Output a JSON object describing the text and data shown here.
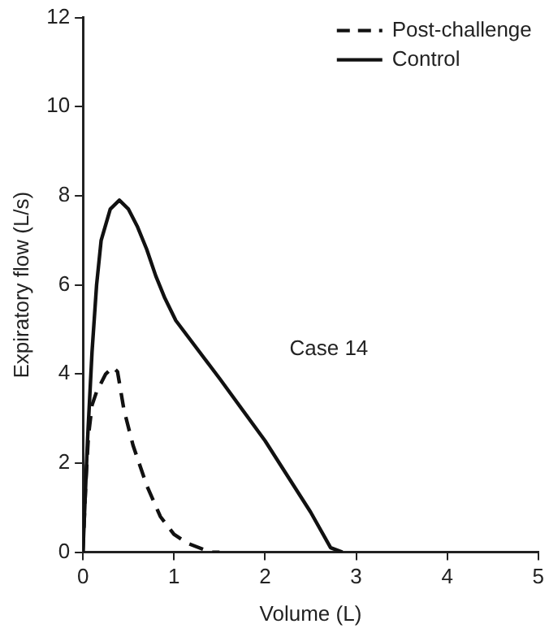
{
  "chart_data": {
    "type": "line",
    "xlabel": "Volume (L)",
    "ylabel": "Expiratory flow (L/s)",
    "annotations": [
      "Case 14"
    ],
    "xlim": [
      0,
      5
    ],
    "xticks": [
      0,
      1,
      2,
      3,
      4,
      5
    ],
    "ylim": [
      0,
      12
    ],
    "yticks": [
      0,
      2,
      4,
      6,
      8,
      10,
      12
    ],
    "grid": false,
    "legend": "top right",
    "marker": "none",
    "series": [
      {
        "name": "Post-challenge",
        "color": "#111111",
        "line_style": "dashed",
        "x": [
          0,
          0.03,
          0.06,
          0.1,
          0.15,
          0.25,
          0.33,
          0.38,
          0.45,
          0.55,
          0.7,
          0.85,
          1.0,
          1.15,
          1.4,
          1.5
        ],
        "values": [
          0,
          1.5,
          2.6,
          3.3,
          3.6,
          4.0,
          4.15,
          4.05,
          3.2,
          2.4,
          1.5,
          0.8,
          0.4,
          0.2,
          0,
          0
        ]
      },
      {
        "name": "Control",
        "color": "#111111",
        "line_style": "solid",
        "x": [
          0,
          0.05,
          0.1,
          0.15,
          0.2,
          0.3,
          0.4,
          0.5,
          0.6,
          0.7,
          0.8,
          0.9,
          1.02,
          1.5,
          2,
          2.5,
          2.72,
          2.85
        ],
        "values": [
          0,
          2.5,
          4.5,
          6,
          7,
          7.7,
          7.9,
          7.7,
          7.3,
          6.8,
          6.2,
          5.7,
          5.2,
          3.9,
          2.5,
          0.9,
          0.1,
          0
        ]
      }
    ]
  }
}
